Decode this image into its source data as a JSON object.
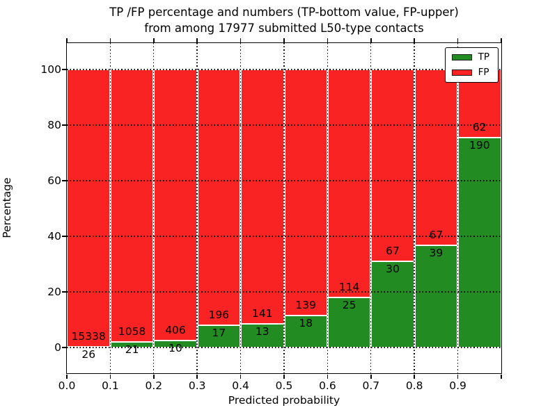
{
  "figure": {
    "title_line1": "TP /FP percentage and numbers (TP-bottom value, FP-upper)",
    "title_line2": "from among 17977 submitted L50-type contacts"
  },
  "chart_data": {
    "type": "bar",
    "subtype": "stacked-percentage",
    "title": "TP /FP percentage and numbers (TP-bottom value, FP-upper)\nfrom among 17977 submitted L50-type contacts",
    "xlabel": "Predicted probability",
    "ylabel": "Percentage",
    "total_contacts": 17977,
    "categories": [
      "0.0",
      "0.1",
      "0.2",
      "0.3",
      "0.4",
      "0.5",
      "0.6",
      "0.7",
      "0.8",
      "0.9"
    ],
    "bin_width": 0.1,
    "series": [
      {
        "name": "TP",
        "color": "#228b22",
        "values": [
          26,
          21,
          10,
          17,
          13,
          18,
          25,
          30,
          39,
          190
        ]
      },
      {
        "name": "FP",
        "color": "#f92323",
        "values": [
          15338,
          1058,
          406,
          196,
          141,
          139,
          114,
          67,
          67,
          62
        ]
      }
    ],
    "bar_edge_color": "#ffffff",
    "x_ticks": [
      "0.0",
      "0.1",
      "0.2",
      "0.3",
      "0.4",
      "0.5",
      "0.6",
      "0.7",
      "0.8",
      "0.9"
    ],
    "y_ticks": [
      0,
      20,
      40,
      60,
      80,
      100
    ],
    "xlim": [
      0.0,
      1.0
    ],
    "ylim": [
      -9.5,
      109.5
    ],
    "grid": "dotted",
    "legend": {
      "position": "upper right",
      "entries": [
        {
          "label": "TP",
          "color": "#228b22"
        },
        {
          "label": "FP",
          "color": "#f92323"
        }
      ]
    }
  }
}
